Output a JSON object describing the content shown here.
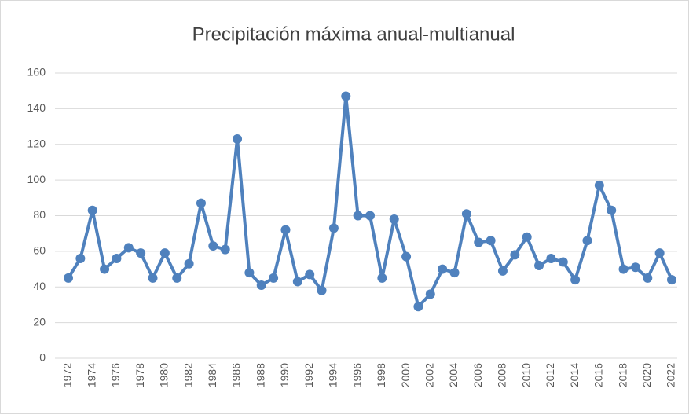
{
  "chart_data": {
    "type": "line",
    "title": "Precipitación máxima anual-multianual",
    "x": [
      1972,
      1973,
      1974,
      1975,
      1976,
      1977,
      1978,
      1979,
      1980,
      1981,
      1982,
      1983,
      1984,
      1985,
      1986,
      1987,
      1988,
      1989,
      1990,
      1991,
      1992,
      1993,
      1994,
      1995,
      1996,
      1997,
      1998,
      1999,
      2000,
      2001,
      2002,
      2003,
      2004,
      2005,
      2006,
      2007,
      2008,
      2009,
      2010,
      2011,
      2012,
      2013,
      2014,
      2015,
      2016,
      2017,
      2018,
      2019,
      2020,
      2021,
      2022
    ],
    "series": [
      {
        "name": "Precipitación",
        "color": "#4f81bd",
        "values": [
          45,
          56,
          83,
          50,
          56,
          62,
          59,
          45,
          59,
          45,
          53,
          87,
          63,
          61,
          123,
          48,
          41,
          45,
          72,
          43,
          47,
          38,
          73,
          147,
          80,
          80,
          45,
          78,
          57,
          29,
          36,
          50,
          48,
          81,
          65,
          66,
          49,
          58,
          68,
          52,
          56,
          54,
          44,
          66,
          97,
          83,
          50,
          51,
          45,
          59,
          44
        ]
      }
    ],
    "xlim": [
      1972,
      2022
    ],
    "xticks": [
      1972,
      1974,
      1976,
      1978,
      1980,
      1982,
      1984,
      1986,
      1988,
      1990,
      1992,
      1994,
      1996,
      1998,
      2000,
      2002,
      2004,
      2006,
      2008,
      2010,
      2012,
      2014,
      2016,
      2018,
      2020,
      2022
    ],
    "ylim": [
      0,
      160
    ],
    "yticks": [
      0,
      20,
      40,
      60,
      80,
      100,
      120,
      140,
      160
    ],
    "grid": true
  }
}
